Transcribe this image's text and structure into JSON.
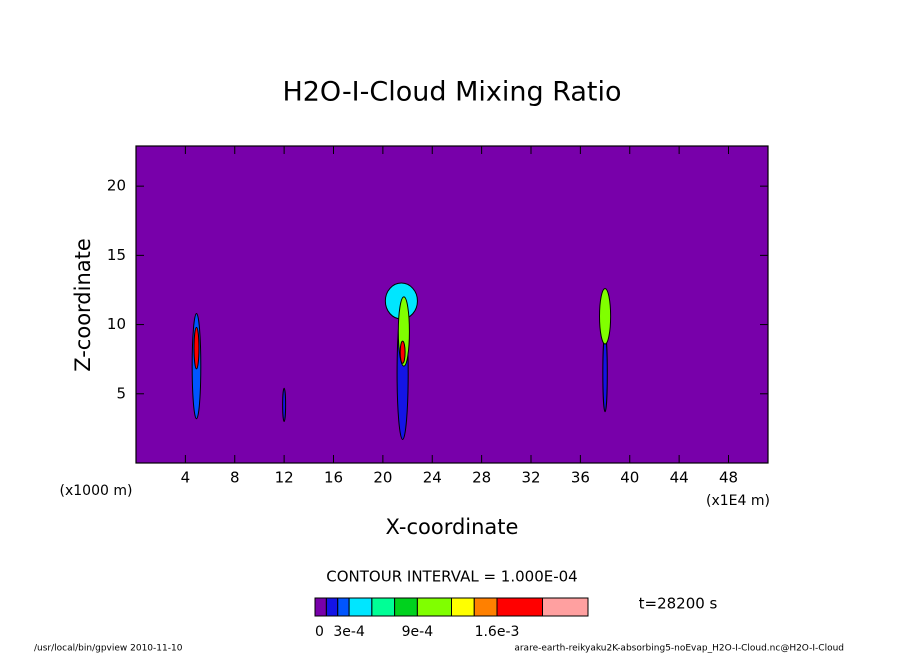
{
  "chart_data": {
    "type": "contour",
    "title": "H2O-I-Cloud Mixing Ratio",
    "x_label": "X-coordinate",
    "y_label": "Z-coordinate",
    "x_unit": "(x1E4 m)",
    "y_unit": "(x1000 m)",
    "xlim": [
      0,
      51.2
    ],
    "ylim": [
      0,
      22.9
    ],
    "xticks": [
      4,
      8,
      12,
      16,
      20,
      24,
      28,
      32,
      36,
      40,
      44,
      48
    ],
    "yticks": [
      5,
      10,
      15,
      20
    ],
    "contour_interval": "CONTOUR INTERVAL = 1.000E-04",
    "time_label": "t=28200 s",
    "footer_left": "/usr/local/bin/gpview  2010-11-10",
    "footer_right": "arare-earth-reikyaku2K-absorbing5-noEvap_H2O-I-Cloud.nc@H2O-I-Cloud",
    "colorbar": {
      "bounds": [
        0,
        0.0001,
        0.0002,
        0.0003,
        0.0005,
        0.0007,
        0.0009,
        0.0012,
        0.0014,
        0.0016,
        0.002,
        0.0024
      ],
      "colors": [
        "#7800aa",
        "#1414e6",
        "#0055ff",
        "#00e6ff",
        "#00ff96",
        "#00d21e",
        "#80ff00",
        "#ffff00",
        "#ff8000",
        "#ff0000",
        "#ffa0a0"
      ],
      "ticks": [
        {
          "value": 0,
          "label": "0"
        },
        {
          "value": 0.0003,
          "label": "3e-4"
        },
        {
          "value": 0.0009,
          "label": "9e-4"
        },
        {
          "value": 0.0016,
          "label": "1.6e-3"
        }
      ]
    },
    "features": [
      {
        "x": 4.9,
        "z": 7.0,
        "rx": 0.35,
        "rz": 3.8,
        "value": 0.0002
      },
      {
        "x": 4.9,
        "z": 8.3,
        "rx": 0.2,
        "rz": 1.5,
        "value": 0.0016
      },
      {
        "x": 12.0,
        "z": 4.2,
        "rx": 0.12,
        "rz": 1.2,
        "value": 0.0001
      },
      {
        "x": 21.6,
        "z": 6.5,
        "rx": 0.45,
        "rz": 4.8,
        "value": 0.0001
      },
      {
        "x": 21.5,
        "z": 11.7,
        "rx": 1.3,
        "rz": 1.3,
        "value": 0.0003
      },
      {
        "x": 21.7,
        "z": 9.5,
        "rx": 0.45,
        "rz": 2.5,
        "value": 0.0009
      },
      {
        "x": 21.6,
        "z": 8.0,
        "rx": 0.2,
        "rz": 0.8,
        "value": 0.0016
      },
      {
        "x": 38.0,
        "z": 6.5,
        "rx": 0.18,
        "rz": 2.8,
        "value": 0.0001
      },
      {
        "x": 38.0,
        "z": 10.6,
        "rx": 0.45,
        "rz": 2.0,
        "value": 0.0009
      }
    ]
  }
}
